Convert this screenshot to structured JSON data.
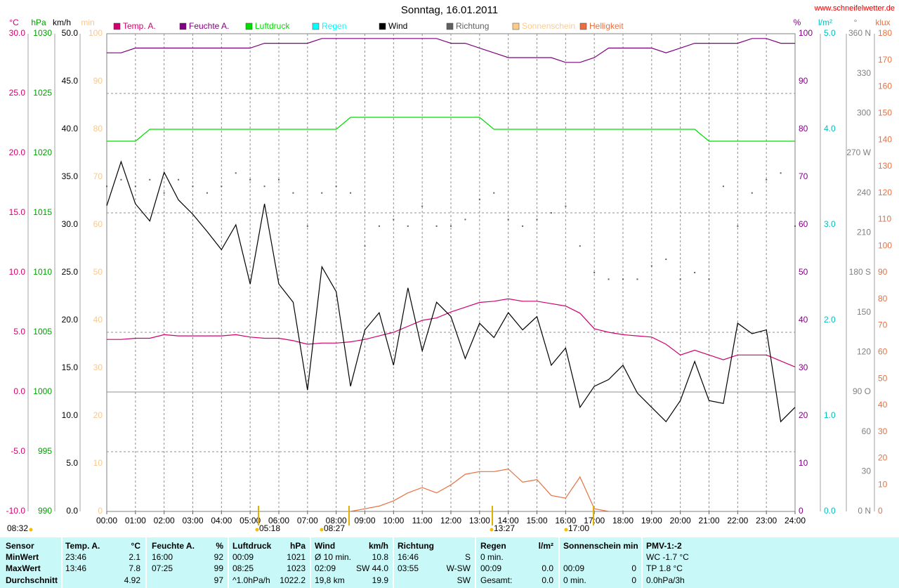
{
  "chart_data": {
    "type": "line",
    "title": "Sonntag, 16.01.2011",
    "source": "www.schneifelwetter.de",
    "xlim": [
      0,
      24
    ],
    "xticks": [
      {
        "value": 0,
        "label": "00:00"
      },
      {
        "value": 1,
        "label": "01:00"
      },
      {
        "value": 2,
        "label": "02:00"
      },
      {
        "value": 3,
        "label": "03:00"
      },
      {
        "value": 4,
        "label": "04:00"
      },
      {
        "value": 5,
        "label": "05:00"
      },
      {
        "value": 6,
        "label": "06:00"
      },
      {
        "value": 7,
        "label": "07:00"
      },
      {
        "value": 8,
        "label": "08:00"
      },
      {
        "value": 9,
        "label": "09:00"
      },
      {
        "value": 10,
        "label": "10:00"
      },
      {
        "value": 11,
        "label": "11:00"
      },
      {
        "value": 12,
        "label": "12:00"
      },
      {
        "value": 13,
        "label": "13:00"
      },
      {
        "value": 14,
        "label": "14:00"
      },
      {
        "value": 15,
        "label": "15:00"
      },
      {
        "value": 16,
        "label": "16:00"
      },
      {
        "value": 17,
        "label": "17:00"
      },
      {
        "value": 18,
        "label": "18:00"
      },
      {
        "value": 19,
        "label": "19:00"
      },
      {
        "value": 20,
        "label": "20:00"
      },
      {
        "value": 21,
        "label": "21:00"
      },
      {
        "value": 22,
        "label": "22:00"
      },
      {
        "value": 23,
        "label": "23:00"
      },
      {
        "value": 24,
        "label": "24:00"
      }
    ],
    "x": [
      0,
      0.5,
      1,
      1.5,
      2,
      2.5,
      3,
      3.5,
      4,
      4.5,
      5,
      5.5,
      6,
      6.5,
      7,
      7.5,
      8,
      8.5,
      9,
      9.5,
      10,
      10.5,
      11,
      11.5,
      12,
      12.5,
      13,
      13.5,
      14,
      14.5,
      15,
      15.5,
      16,
      16.5,
      17,
      17.5,
      18,
      18.5,
      19,
      19.5,
      20,
      20.5,
      21,
      21.5,
      22,
      22.5,
      23,
      23.5,
      24
    ],
    "axes": {
      "temp": {
        "unit": "°C",
        "color": "#d0006f",
        "ylim": [
          -10,
          30
        ],
        "yticks": [
          {
            "value": 30,
            "label": "30.0"
          },
          {
            "value": 25,
            "label": "25.0"
          },
          {
            "value": 20,
            "label": "20.0"
          },
          {
            "value": 15,
            "label": "15.0"
          },
          {
            "value": 10,
            "label": "10.0"
          },
          {
            "value": 5,
            "label": "5.0"
          },
          {
            "value": 0,
            "label": "0.0"
          },
          {
            "value": -5,
            "label": "-5.0"
          },
          {
            "value": -10,
            "label": "-10.0"
          }
        ]
      },
      "pressure": {
        "unit": "hPa",
        "color": "#00a000",
        "ylim": [
          990,
          1030
        ],
        "yticks": [
          1030,
          1025,
          1020,
          1015,
          1010,
          1005,
          1000,
          995,
          990
        ]
      },
      "wind": {
        "unit": "km/h",
        "color": "#000000",
        "ylim": [
          0,
          50
        ],
        "yticks": [
          {
            "value": 50,
            "label": "50.0"
          },
          {
            "value": 45,
            "label": "45.0"
          },
          {
            "value": 40,
            "label": "40.0"
          },
          {
            "value": 35,
            "label": "35.0"
          },
          {
            "value": 30,
            "label": "30.0"
          },
          {
            "value": 25,
            "label": "25.0"
          },
          {
            "value": 20,
            "label": "20.0"
          },
          {
            "value": 15,
            "label": "15.0"
          },
          {
            "value": 10,
            "label": "10.0"
          },
          {
            "value": 5,
            "label": "5.0"
          },
          {
            "value": 0,
            "label": "0.0"
          }
        ]
      },
      "sunshine": {
        "unit": "min",
        "color": "#f8c890",
        "ylim": [
          0,
          100
        ],
        "yticks": [
          100,
          90,
          80,
          70,
          60,
          50,
          40,
          30,
          20,
          10,
          0
        ]
      },
      "humidity": {
        "unit": "%",
        "color": "#800080",
        "ylim": [
          0,
          100
        ],
        "yticks": [
          100,
          90,
          80,
          70,
          60,
          50,
          40,
          30,
          20,
          10,
          0
        ]
      },
      "rain": {
        "unit": "l/m²",
        "color": "#00c0c0",
        "ylim": [
          0,
          5
        ],
        "yticks": [
          {
            "value": 5,
            "label": "5.0"
          },
          {
            "value": 4,
            "label": "4.0"
          },
          {
            "value": 3,
            "label": "3.0"
          },
          {
            "value": 2,
            "label": "2.0"
          },
          {
            "value": 1,
            "label": "1.0"
          },
          {
            "value": 0,
            "label": "0.0"
          }
        ]
      },
      "direction": {
        "unit": "°",
        "color": "#808080",
        "ylim": [
          0,
          360
        ],
        "yticks": [
          {
            "value": 360,
            "label": "360 N"
          },
          330,
          300,
          {
            "value": 270,
            "label": "270 W"
          },
          240,
          210,
          {
            "value": 180,
            "label": "180 S"
          },
          150,
          120,
          {
            "value": 90,
            "label": "90 O"
          },
          60,
          30,
          {
            "value": 0,
            "label": "0 N"
          }
        ]
      },
      "brightness": {
        "unit": "klux",
        "color": "#e87040",
        "ylim": [
          0,
          180
        ],
        "yticks": [
          180,
          170,
          160,
          150,
          140,
          130,
          120,
          110,
          100,
          90,
          80,
          70,
          60,
          50,
          40,
          30,
          20,
          10,
          0
        ]
      }
    },
    "series": [
      {
        "name": "Temp. A.",
        "color": "#d0006f",
        "axis": "temp",
        "values": [
          4.4,
          4.4,
          4.5,
          4.5,
          4.8,
          4.7,
          4.7,
          4.7,
          4.7,
          4.8,
          4.6,
          4.5,
          4.5,
          4.3,
          4.0,
          4.1,
          4.1,
          4.2,
          4.4,
          4.7,
          5.0,
          5.5,
          6.0,
          6.2,
          6.7,
          7.1,
          7.5,
          7.6,
          7.8,
          7.6,
          7.6,
          7.4,
          7.2,
          6.6,
          5.3,
          5.0,
          4.8,
          4.7,
          4.6,
          4.0,
          3.1,
          3.5,
          3.1,
          2.7,
          3.1,
          3.1,
          3.1,
          2.6,
          2.1
        ]
      },
      {
        "name": "Feuchte A.",
        "color": "#800080",
        "axis": "humidity",
        "values": [
          96,
          96,
          97,
          97,
          97,
          97,
          97,
          97,
          97,
          97,
          97,
          98,
          98,
          98,
          98,
          99,
          99,
          99,
          99,
          99,
          99,
          99,
          99,
          99,
          98,
          98,
          97,
          96,
          95,
          95,
          95,
          95,
          94,
          94,
          95,
          97,
          97,
          97,
          97,
          96,
          97,
          98,
          98,
          98,
          98,
          99,
          99,
          98,
          98
        ]
      },
      {
        "name": "Luftdruck",
        "color": "#00dd00",
        "axis": "pressure",
        "values": [
          1021,
          1021,
          1021,
          1022,
          1022,
          1022,
          1022,
          1022,
          1022,
          1022,
          1022,
          1022,
          1022,
          1022,
          1022,
          1022,
          1022,
          1023,
          1023,
          1023,
          1023,
          1023,
          1023,
          1023,
          1023,
          1023,
          1023,
          1022,
          1022,
          1022,
          1022,
          1022,
          1022,
          1022,
          1022,
          1022,
          1022,
          1022,
          1022,
          1022,
          1022,
          1022,
          1021,
          1021,
          1021,
          1021,
          1021,
          1021,
          1021
        ]
      },
      {
        "name": "Regen",
        "color": "#00ffff",
        "axis": "rain"
      },
      {
        "name": "Wind",
        "color": "#000000",
        "axis": "wind",
        "values": [
          32.0,
          36.6,
          32.2,
          30.4,
          35.5,
          32.6,
          31.1,
          29.3,
          27.4,
          30.0,
          23.8,
          32.2,
          23.8,
          21.9,
          12.7,
          25.6,
          23.0,
          13.1,
          19.0,
          20.8,
          15.3,
          23.4,
          16.8,
          21.9,
          20.4,
          16.0,
          19.7,
          18.2,
          20.8,
          19.0,
          20.4,
          15.3,
          17.1,
          10.9,
          13.1,
          13.8,
          15.3,
          12.4,
          10.9,
          9.4,
          11.6,
          15.7,
          11.6,
          11.3,
          19.7,
          18.6,
          19.0,
          9.4,
          10.9
        ]
      },
      {
        "name": "Richtung",
        "color": "#606060",
        "axis": "direction",
        "style": "dots",
        "values": [
          245,
          250,
          245,
          250,
          240,
          250,
          245,
          240,
          245,
          255,
          250,
          245,
          250,
          240,
          215,
          240,
          245,
          240,
          200,
          215,
          220,
          215,
          230,
          215,
          215,
          220,
          235,
          240,
          220,
          215,
          220,
          225,
          230,
          200,
          180,
          175,
          175,
          175,
          185,
          190,
          175,
          180,
          175,
          245,
          215,
          240,
          250,
          255,
          215
        ]
      },
      {
        "name": "Sonnenschein",
        "color": "#ffcc88",
        "axis": "sunshine"
      },
      {
        "name": "Helligkeit",
        "color": "#e87040",
        "axis": "brightness",
        "values": [
          null,
          null,
          null,
          null,
          null,
          null,
          null,
          null,
          null,
          null,
          null,
          null,
          null,
          null,
          null,
          null,
          null,
          0,
          1,
          2,
          4,
          7,
          9,
          7,
          10,
          14,
          15,
          15,
          16,
          11,
          12,
          6,
          5,
          13,
          1,
          0,
          null,
          null,
          null,
          null,
          null,
          null,
          null,
          null,
          null,
          null,
          null,
          null,
          null
        ]
      }
    ],
    "annotations": [
      "08:32",
      "05:18",
      "08:27",
      "13:27",
      "17:00"
    ]
  },
  "table": {
    "row_labels": [
      "Sensor",
      "MinWert",
      "MaxWert",
      "Durchschnitt"
    ],
    "columns": [
      {
        "header": {
          "left": "Temp. A.",
          "right": "°C"
        },
        "cells": [
          {
            "left": "23:46",
            "right": "2.1"
          },
          {
            "left": "13:46",
            "right": "7.8"
          },
          {
            "right": "4.92"
          }
        ]
      },
      {
        "header": {
          "left": "Feuchte A.",
          "right": "%"
        },
        "cells": [
          {
            "left": "16:00",
            "right": "92"
          },
          {
            "left": "07:25",
            "right": "99"
          },
          {
            "right": "97"
          }
        ]
      },
      {
        "header": {
          "left": "Luftdruck",
          "right": "hPa"
        },
        "cells": [
          {
            "left": "00:09",
            "right": "1021"
          },
          {
            "left": "08:25",
            "right": "1023"
          },
          {
            "left": "^1.0hPa/h",
            "right": "1022.2"
          }
        ]
      },
      {
        "header": {
          "left": "Wind",
          "right": "km/h"
        },
        "cells": [
          {
            "left": "Ø 10 min.",
            "right": "10.8"
          },
          {
            "left": "02:09",
            "right": "SW 44.0"
          },
          {
            "left": "19,8 km",
            "right": "19.9"
          }
        ]
      },
      {
        "header": {
          "left": "Richtung"
        },
        "cells": [
          {
            "left": "16:46",
            "right": "S"
          },
          {
            "left": "03:55",
            "right": "W-SW"
          },
          {
            "right": "SW"
          }
        ]
      },
      {
        "header": {
          "left": "Regen",
          "right": "l/m²"
        },
        "cells": [
          {
            "left": "0 min."
          },
          {
            "left": "00:09",
            "right": "0.0"
          },
          {
            "left": "Gesamt:",
            "right": "0.0"
          }
        ]
      },
      {
        "header": {
          "left": "Sonnenschein min"
        },
        "cells": [
          {},
          {
            "left": "00:09",
            "right": "0"
          },
          {
            "left": "0 min.",
            "right": "0"
          }
        ]
      },
      {
        "header": {
          "left": "PMV-1:-2"
        },
        "cells": [
          {
            "left": "WC -1.7 °C"
          },
          {
            "left": "TP 1.8 °C"
          },
          {
            "left": "0.0hPa/3h"
          }
        ]
      }
    ]
  }
}
